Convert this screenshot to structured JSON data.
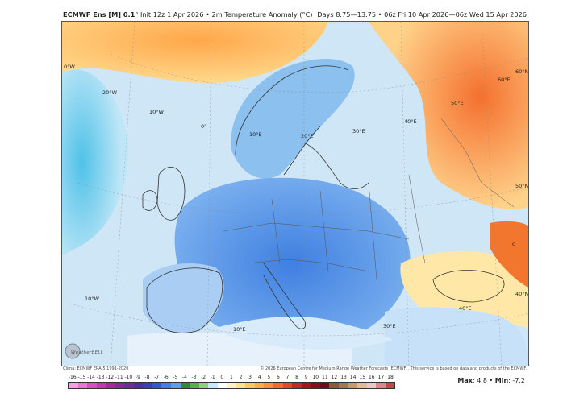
{
  "header": {
    "model": "ECMWF Ens [M] 0.1",
    "init_text": "° Init 12z 1 Apr 2026 • 2m Temperature Anomaly (°C)",
    "valid_text": "Days 8.75—13.75 • 06z Fri 10 Apr 2026—06z Wed 15 Apr 2026"
  },
  "map": {
    "labels": {
      "lon0": "0°W",
      "lon20w": "20°W",
      "lon10w": "10°W",
      "lon0b": "0°",
      "lon10e": "10°E",
      "lon20e": "20°E",
      "lon30e": "30°E",
      "lon40e": "40°E",
      "lat50e": "50°E",
      "lat60e": "60°E",
      "lat60n": "60°N",
      "lat50n": "50°N",
      "lat40n": "40°N",
      "lon30e_south": "30°E",
      "lon40e_south": "40°E",
      "lon10w_south": "10°W",
      "lon10e_south": "10°E",
      "lat_c": "c"
    }
  },
  "credits": {
    "left": "Clima: ECMWF ERA-5 1991-2020",
    "right": "© 2026 European Centre for Medium-Range Weather Forecasts (ECMWF). This service is based on data and products of the ECMWF."
  },
  "logo": {
    "text": "WeatherBELL"
  },
  "scale": {
    "ticks": [
      "-16",
      "-15",
      "-14",
      "-13",
      "-12",
      "-11",
      "-10",
      "-9",
      "-8",
      "-7",
      "-6",
      "-5",
      "-4",
      "-3",
      "-2",
      "-1",
      "0",
      "1",
      "2",
      "3",
      "4",
      "5",
      "6",
      "7",
      "8",
      "9",
      "10",
      "11",
      "12",
      "13",
      "14",
      "15",
      "16",
      "17",
      "18"
    ],
    "colors": [
      "#f5a0e6",
      "#ea74d8",
      "#d94ec6",
      "#c238b2",
      "#a52a9c",
      "#8a2a96",
      "#6b2d9a",
      "#4b2ea0",
      "#3a3fb8",
      "#2f5ad0",
      "#3f7fe6",
      "#5aa0ee",
      "#2f8a3a",
      "#55b04a",
      "#8fd07a",
      "#c6e7ff",
      "#ffffff",
      "#fff4c2",
      "#ffe28a",
      "#ffc760",
      "#ffac48",
      "#ff8f3a",
      "#f46a2e",
      "#e04a28",
      "#c42a22",
      "#a4161c",
      "#86101a",
      "#6c0c16",
      "#8a5a3a",
      "#a8764c",
      "#c49a70",
      "#dcbf9a",
      "#e8c8c8",
      "#d88a8a",
      "#c04a4a"
    ]
  },
  "stats": {
    "max_label": "Max",
    "max_value": "4.8",
    "separator": "•",
    "min_label": "Min",
    "min_value": "-7.2"
  }
}
